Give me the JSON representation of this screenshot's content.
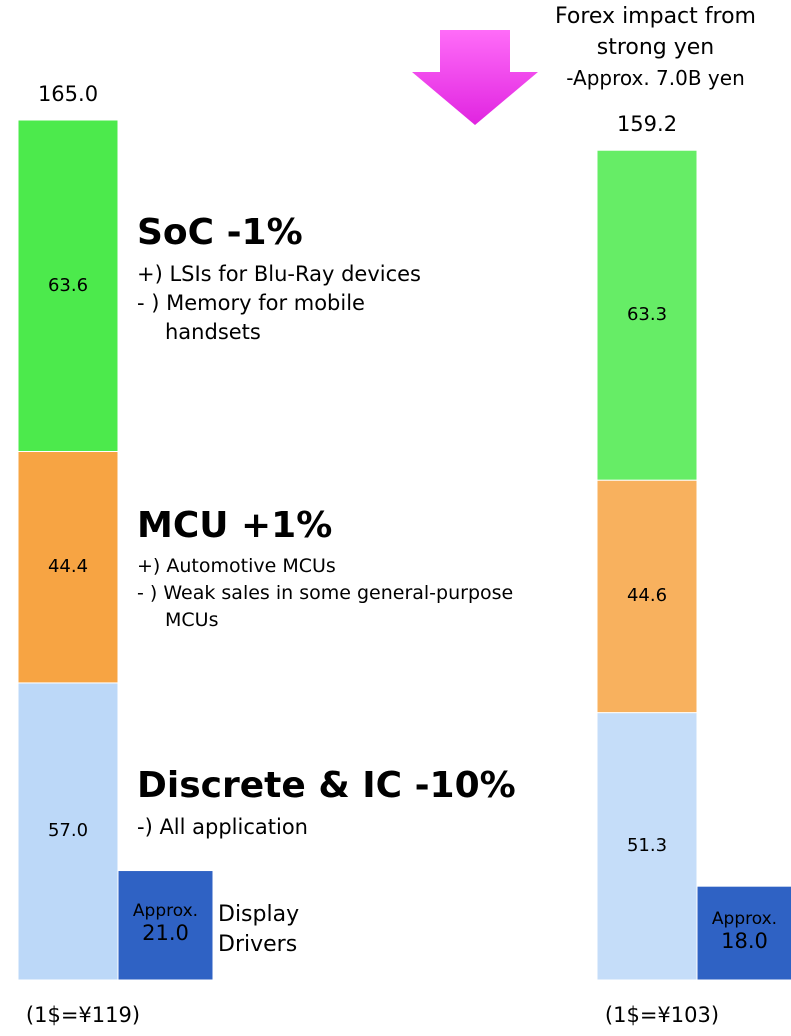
{
  "chart_data": {
    "type": "bar",
    "stacked": true,
    "categories": [
      "(1$=¥119)",
      "(1$=¥103)"
    ],
    "totals": [
      165.0,
      159.2
    ],
    "total_labels": [
      "165.0",
      "159.2"
    ],
    "ylim": [
      0,
      165
    ],
    "series": [
      {
        "name": "Discrete & IC -10%",
        "color": "#bcd8f8",
        "values": [
          57.0,
          51.3
        ],
        "value_labels": [
          "57.0",
          "51.3"
        ],
        "items": [
          "-) All application"
        ]
      },
      {
        "name": "MCU +1%",
        "color": "#f7a443",
        "values": [
          44.4,
          44.6
        ],
        "value_labels": [
          "44.4",
          "44.6"
        ],
        "items": [
          "+) Automotive MCUs",
          "- ) Weak sales in some general-purpose MCUs"
        ]
      },
      {
        "name": "SoC -1%",
        "color": "#4cea4c",
        "values": [
          63.6,
          63.3
        ],
        "value_labels": [
          "63.6",
          "63.3"
        ],
        "items": [
          "+) LSIs for Blu-Ray devices",
          "- ) Memory for mobile handsets"
        ]
      }
    ],
    "beside_series": {
      "name": "Display Drivers",
      "color": "#2f62c4",
      "prefix": "Approx.",
      "values": [
        21.0,
        18.0
      ],
      "value_labels": [
        "21.0",
        "18.0"
      ]
    },
    "forex_note": [
      "Forex impact from",
      "strong yen",
      "-Approx. 7.0B yen"
    ]
  }
}
